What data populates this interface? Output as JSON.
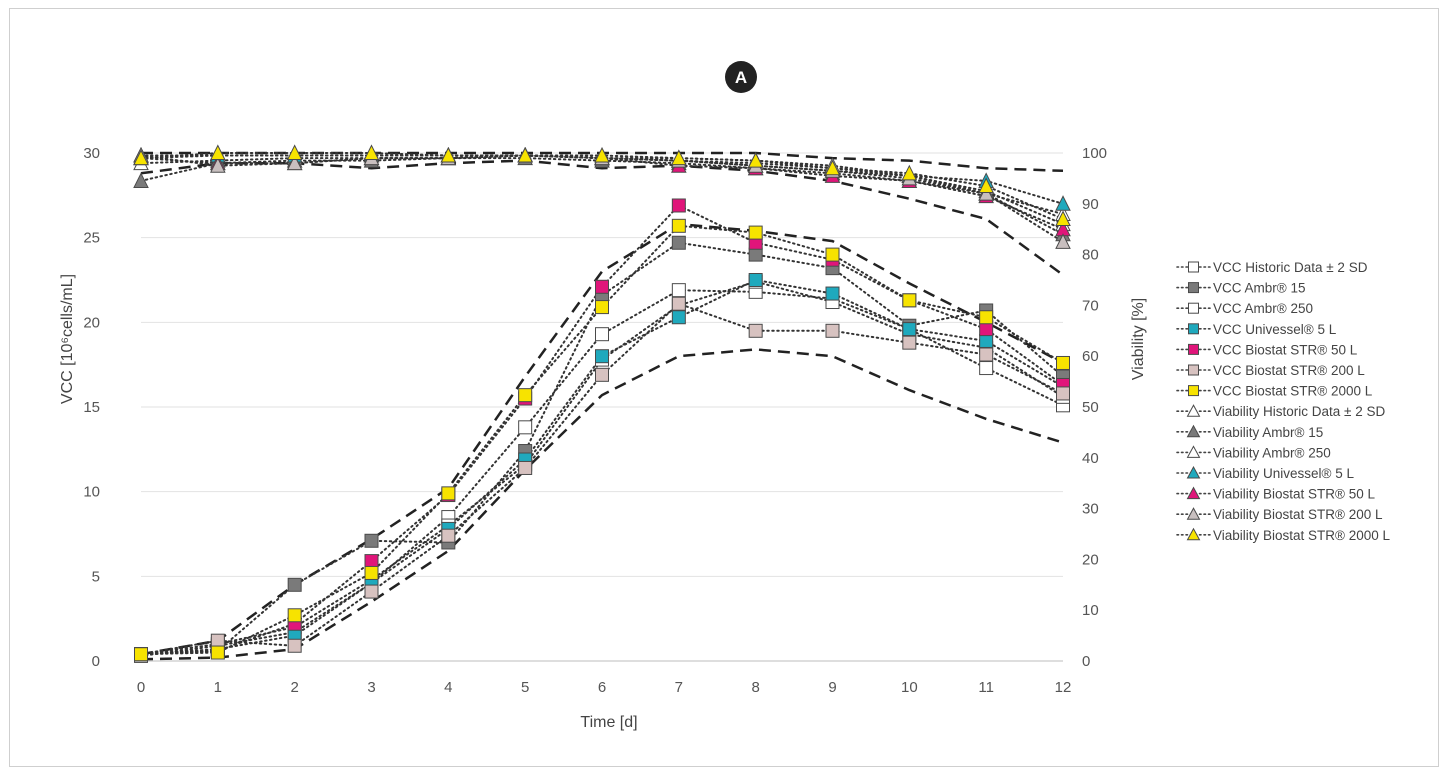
{
  "panel_badge": "A",
  "chart_data": {
    "type": "scatter",
    "xlabel": "Time [d]",
    "ylabel_left": "VCC [10⁶cells/mL]",
    "ylabel_right": "Viability [%]",
    "x": [
      0,
      1,
      2,
      3,
      4,
      5,
      6,
      7,
      8,
      9,
      10,
      11,
      12
    ],
    "x_ticks": [
      "0",
      "1",
      "2",
      "3",
      "4",
      "5",
      "6",
      "7",
      "8",
      "9",
      "10",
      "11",
      "12"
    ],
    "ylim_left": [
      0,
      30
    ],
    "y_ticks_left": [
      "0",
      "5",
      "10",
      "15",
      "20",
      "25",
      "30"
    ],
    "ylim_right": [
      0,
      100
    ],
    "y_ticks_right": [
      "0",
      "10",
      "20",
      "30",
      "40",
      "50",
      "60",
      "70",
      "80",
      "90",
      "100"
    ],
    "grid": "horizontal",
    "legend_position": "right",
    "bounds": {
      "vcc_upper": [
        0.4,
        1.2,
        4.5,
        7.2,
        10.2,
        16.8,
        23.0,
        25.8,
        25.4,
        24.8,
        22.3,
        20.0,
        17.6
      ],
      "vcc_lower": [
        0.1,
        0.2,
        0.7,
        3.5,
        6.5,
        11.3,
        15.7,
        18.0,
        18.4,
        18.0,
        16.0,
        14.3,
        12.9
      ],
      "viability_upper": [
        100,
        100,
        100,
        100,
        100,
        100,
        100,
        100,
        100,
        99,
        98.5,
        97,
        96.5
      ],
      "viability_lower": [
        96,
        98,
        98,
        97,
        98,
        98.5,
        97,
        97.5,
        96.5,
        94.5,
        91,
        87,
        76
      ]
    },
    "series": [
      {
        "name": "VCC Historic Data ± 2 SD",
        "axis": "left",
        "marker": "square",
        "color": "#ffffff",
        "values": [
          0.3,
          0.9,
          1.7,
          4.6,
          8.5,
          13.8,
          19.3,
          21.9,
          21.8,
          21.4,
          19.6,
          17.3,
          15.1
        ]
      },
      {
        "name": "VCC Ambr® 15",
        "axis": "left",
        "marker": "square",
        "color": "#7a7a7a",
        "values": [
          0.4,
          0.6,
          4.5,
          7.1,
          7.0,
          12.4,
          21.6,
          24.7,
          24.0,
          23.2,
          19.8,
          20.7,
          16.8
        ]
      },
      {
        "name": "VCC Ambr® 250",
        "axis": "left",
        "marker": "square",
        "color": "#ffffff",
        "values": [
          0.4,
          1.0,
          2.0,
          4.8,
          8.0,
          11.6,
          17.8,
          21.0,
          22.4,
          21.2,
          19.3,
          18.5,
          15.6
        ]
      },
      {
        "name": "VCC Univessel® 5 L",
        "axis": "left",
        "marker": "square",
        "color": "#1fa9bd",
        "values": [
          0.4,
          0.7,
          1.5,
          4.6,
          7.8,
          11.9,
          18.0,
          20.3,
          22.5,
          21.7,
          19.6,
          18.9,
          16.2
        ]
      },
      {
        "name": "VCC Biostat STR® 50 L",
        "axis": "left",
        "marker": "square",
        "color": "#e0157a",
        "values": [
          0.4,
          0.6,
          2.2,
          5.9,
          9.8,
          15.5,
          22.1,
          26.9,
          24.7,
          23.7,
          21.3,
          19.6,
          16.3
        ]
      },
      {
        "name": "VCC Biostat STR® 200 L",
        "axis": "left",
        "marker": "square",
        "color": "#d7c2c0",
        "values": [
          0.4,
          1.2,
          0.9,
          4.1,
          7.4,
          11.4,
          16.9,
          21.1,
          19.5,
          19.5,
          18.8,
          18.1,
          15.8
        ]
      },
      {
        "name": "VCC Biostat STR® 2000 L",
        "axis": "left",
        "marker": "square",
        "color": "#f7e300",
        "values": [
          0.4,
          0.5,
          2.7,
          5.2,
          9.9,
          15.7,
          20.9,
          25.7,
          25.3,
          24.0,
          21.3,
          20.3,
          17.6
        ]
      },
      {
        "name": "Viability Historic Data ± 2 SD",
        "axis": "right",
        "marker": "triangle",
        "color": "#ffffff",
        "values": [
          98,
          98.5,
          99,
          99,
          99,
          99.5,
          99,
          98.5,
          98,
          97,
          95.5,
          92.5,
          86
        ]
      },
      {
        "name": "Viability Ambr® 15",
        "axis": "right",
        "marker": "triangle",
        "color": "#7a7a7a",
        "values": [
          94.5,
          98,
          98.5,
          98.5,
          99,
          99,
          98.5,
          98,
          97,
          96,
          94.5,
          92,
          84
        ]
      },
      {
        "name": "Viability Ambr® 250",
        "axis": "right",
        "marker": "triangle",
        "color": "#ffffff",
        "values": [
          99.5,
          99.5,
          99.5,
          99.5,
          99.5,
          99.5,
          99,
          99,
          98.5,
          97.5,
          95.5,
          92,
          88
        ]
      },
      {
        "name": "Viability Univessel® 5 L",
        "axis": "right",
        "marker": "triangle",
        "color": "#1fa9bd",
        "values": [
          99,
          99.5,
          99.5,
          99.5,
          99.5,
          99.5,
          99,
          98.5,
          97.5,
          96.5,
          95.5,
          94.5,
          90
        ]
      },
      {
        "name": "Viability Biostat STR® 50 L",
        "axis": "right",
        "marker": "triangle",
        "color": "#e0157a",
        "values": [
          99,
          98,
          98,
          99,
          99,
          99.5,
          99,
          97.5,
          97,
          95.5,
          94.5,
          91.5,
          85
        ]
      },
      {
        "name": "Viability Biostat STR® 200 L",
        "axis": "right",
        "marker": "triangle",
        "color": "#c8bfbf",
        "values": [
          99.5,
          97.5,
          98,
          99,
          99,
          99.5,
          99,
          98.5,
          97.5,
          96.5,
          95,
          92,
          82.5
        ]
      },
      {
        "name": "Viability Biostat STR® 2000 L",
        "axis": "right",
        "marker": "triangle",
        "color": "#f7e300",
        "values": [
          99,
          100,
          100,
          100,
          99.5,
          99.5,
          99.5,
          99,
          98.5,
          97,
          96,
          93.5,
          87
        ]
      }
    ]
  }
}
